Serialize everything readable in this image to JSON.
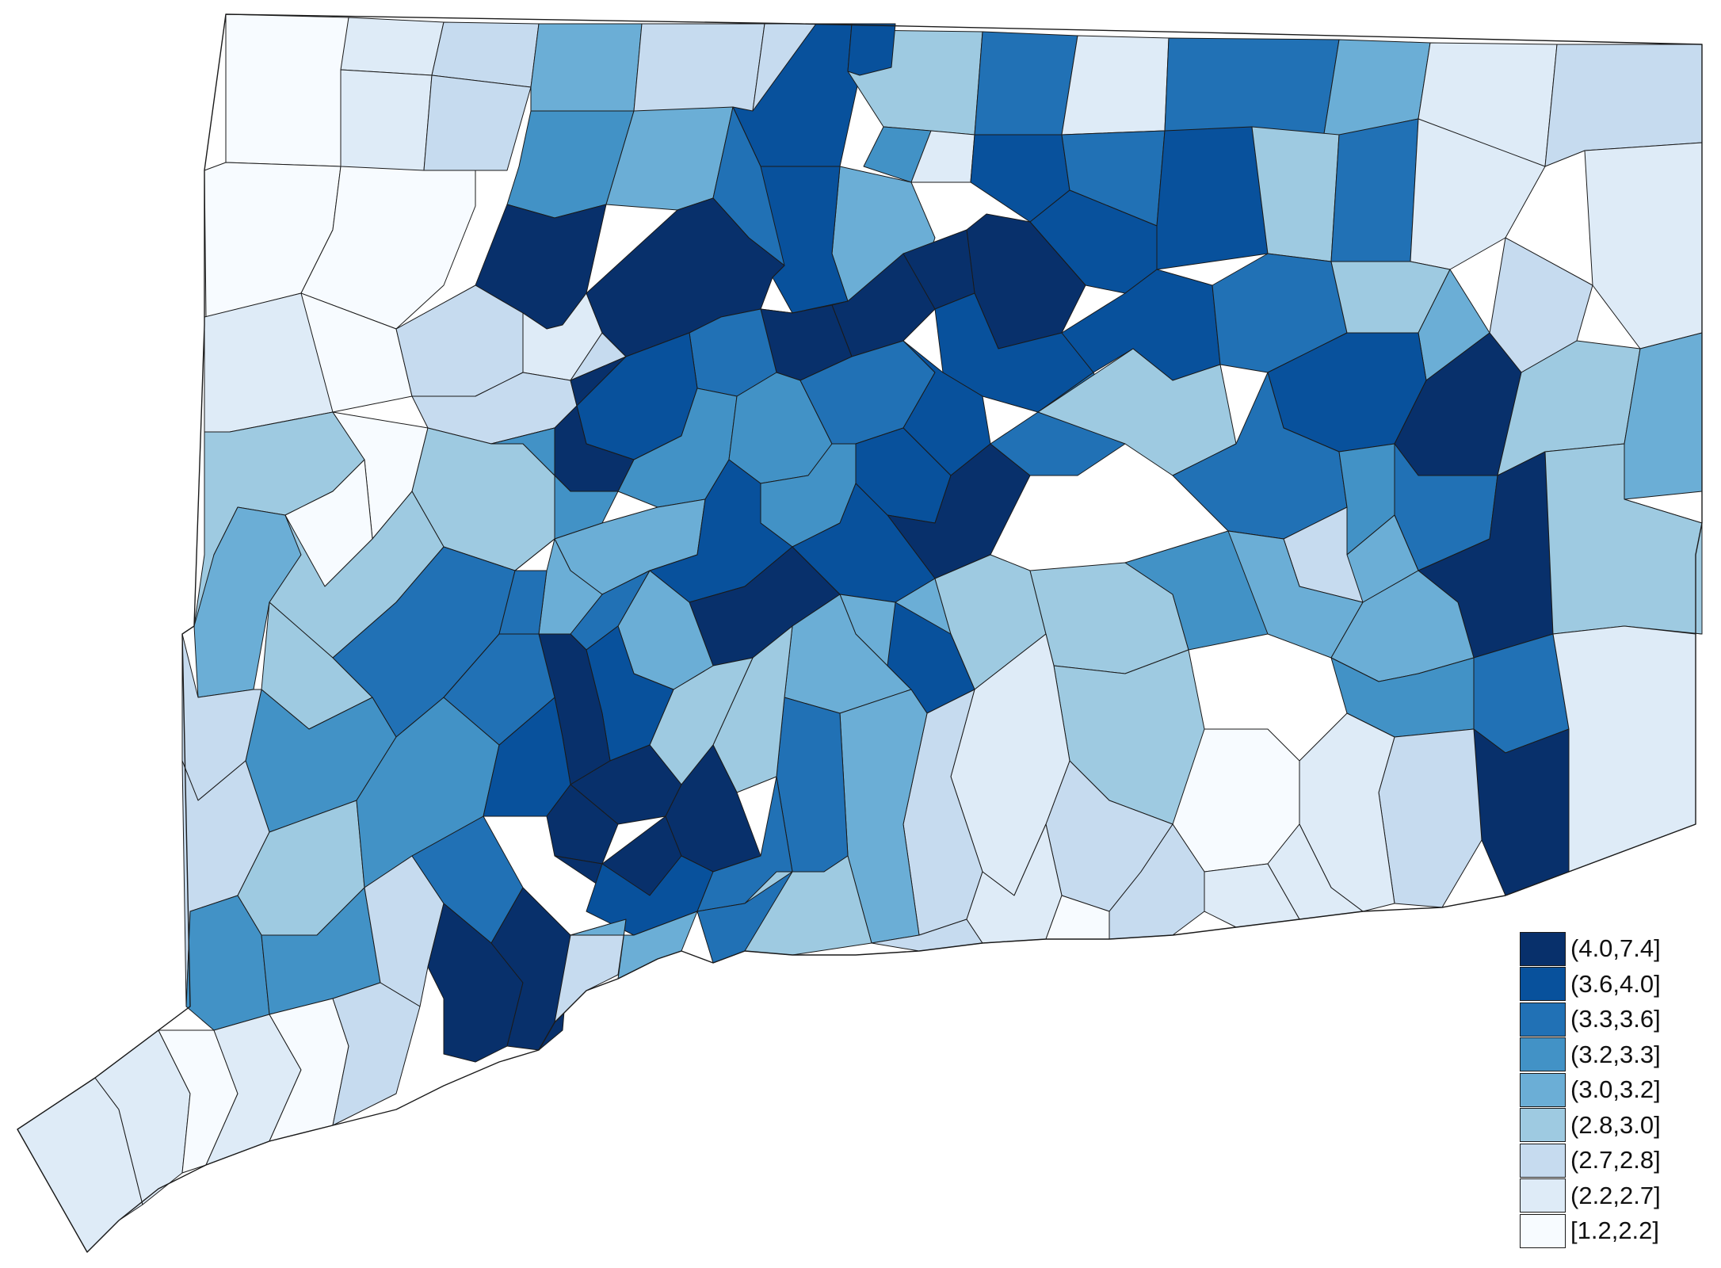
{
  "legend": {
    "items": [
      {
        "label": "(4.0,7.4]",
        "color": "#08306b"
      },
      {
        "label": "(3.6,4.0]",
        "color": "#08519c"
      },
      {
        "label": "(3.3,3.6]",
        "color": "#2171b5"
      },
      {
        "label": "(3.2,3.3]",
        "color": "#4292c6"
      },
      {
        "label": "(3.0,3.2]",
        "color": "#6baed6"
      },
      {
        "label": "(2.8,3.0]",
        "color": "#9ecae1"
      },
      {
        "label": "(2.7,2.8]",
        "color": "#c6dbef"
      },
      {
        "label": "(2.2,2.7]",
        "color": "#deebf7"
      },
      {
        "label": "[1.2,2.2]",
        "color": "#f7fbff"
      }
    ]
  },
  "map": {
    "border_color": "#1a1a1a",
    "background": "#ffffff"
  }
}
